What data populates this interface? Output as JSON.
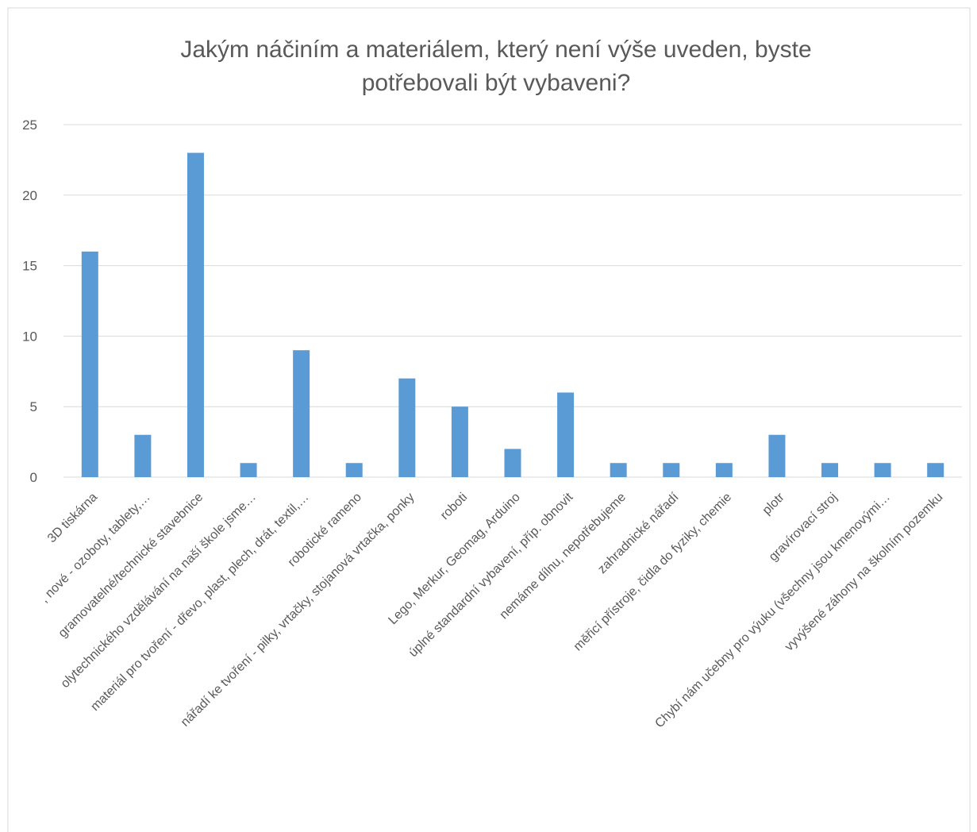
{
  "chart_data": {
    "type": "bar",
    "title": [
      "Jakým náčiním a materiálem, který není výše uveden, byste",
      "potřebovali být vybaveni?"
    ],
    "categories": [
      "3D tiskárna",
      ", nové - ozoboty, tablety,…",
      "gramovatelné/technické stavebnice",
      "olytechnického vzdělávání na naší škole jsme…",
      "materiál pro tvoření - dřevo, plast, plech, drát, textil,…",
      "robotické rameno",
      "nářadí ke tvoření - pilky, vrtačky, stojanová vrtačka, ponky",
      "roboti",
      "Lego, Merkur, Geomag, Arduino",
      "úplné standardní vybavení, příp. obnovit",
      "nemáme dílnu, nepotřebujeme",
      "zahradnické nářadí",
      "měřicí přístroje, čidla do fyziky, chemie",
      "plotr",
      "gravírovací stroj",
      "Chybí nám učebny pro výuku (všechny jsou kmenovými…",
      "vyvýšené záhony na školním pozemku"
    ],
    "values": [
      16,
      3,
      23,
      1,
      9,
      1,
      7,
      5,
      2,
      6,
      1,
      1,
      1,
      3,
      1,
      1,
      1
    ],
    "color": "#5b9bd5",
    "ylim": [
      0,
      25
    ],
    "yticks": [
      0,
      5,
      10,
      15,
      20,
      25
    ],
    "grid": true
  }
}
